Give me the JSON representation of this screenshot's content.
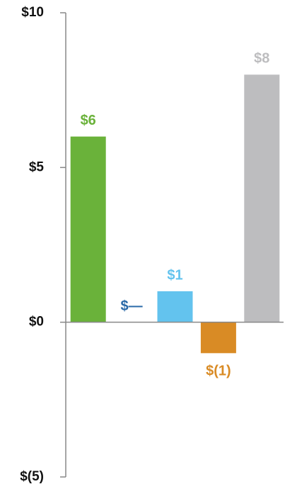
{
  "chart_data": {
    "type": "bar",
    "categories": [
      null,
      null,
      null,
      null,
      null
    ],
    "values": [
      6,
      0,
      1,
      -1,
      8
    ],
    "value_labels": [
      "$6",
      "$—",
      "$1",
      "$(1)",
      "$8"
    ],
    "colors": [
      "#6ab23a",
      "#2a6aa8",
      "#63c3ee",
      "#d98b25",
      "#bdbdbf"
    ],
    "ylim": [
      -5,
      10
    ],
    "yticks": [
      {
        "value": 10,
        "label": "$10"
      },
      {
        "value": 5,
        "label": "$5"
      },
      {
        "value": 0,
        "label": "$0"
      },
      {
        "value": -5,
        "label": "$(5)"
      }
    ]
  }
}
